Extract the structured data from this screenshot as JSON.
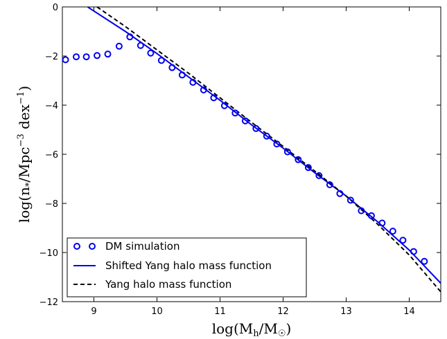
{
  "chart_data": {
    "type": "line",
    "title": "",
    "xlabel": "log(M_h/M_☉)",
    "ylabel": "log(n_*/Mpc^-3 dex^-1)",
    "xlim": [
      8.5,
      14.5
    ],
    "ylim": [
      -12,
      0
    ],
    "xticks": [
      9,
      10,
      11,
      12,
      13,
      14
    ],
    "yticks": [
      0,
      -2,
      -4,
      -6,
      -8,
      -10,
      -12
    ],
    "grid": false,
    "legend_position": "lower-left",
    "series": [
      {
        "name": "DM simulation",
        "kind": "scatter",
        "marker": "open-circle",
        "color": "#0000ee",
        "x": [
          8.55,
          8.72,
          8.88,
          9.05,
          9.22,
          9.4,
          9.57,
          9.74,
          9.9,
          10.07,
          10.24,
          10.4,
          10.57,
          10.74,
          10.9,
          11.07,
          11.24,
          11.4,
          11.57,
          11.74,
          11.9,
          12.07,
          12.24,
          12.4,
          12.57,
          12.74,
          12.9,
          13.07,
          13.24,
          13.4,
          13.57,
          13.74,
          13.9,
          14.07,
          14.24
        ],
        "y": [
          -2.15,
          -2.03,
          -2.03,
          -1.98,
          -1.92,
          -1.6,
          -1.22,
          -1.57,
          -1.88,
          -2.18,
          -2.47,
          -2.77,
          -3.07,
          -3.38,
          -3.7,
          -4.02,
          -4.32,
          -4.64,
          -4.95,
          -5.26,
          -5.58,
          -5.9,
          -6.22,
          -6.54,
          -6.87,
          -7.24,
          -7.6,
          -7.87,
          -8.3,
          -8.5,
          -8.8,
          -9.13,
          -9.5,
          -9.96,
          -10.36
        ]
      },
      {
        "name": "Shifted Yang halo mass function",
        "kind": "line",
        "style": "solid",
        "color": "#0000ee",
        "x": [
          8.9,
          9.5,
          10.0,
          10.5,
          11.0,
          11.5,
          12.0,
          12.5,
          13.0,
          13.5,
          14.0,
          14.5
        ],
        "y": [
          0,
          -1.0,
          -1.9,
          -2.85,
          -3.8,
          -4.8,
          -5.75,
          -6.75,
          -7.7,
          -8.75,
          -9.9,
          -11.25
        ]
      },
      {
        "name": "Yang halo mass function",
        "kind": "line",
        "style": "dashed",
        "color": "#000000",
        "x": [
          9.05,
          9.5,
          10.0,
          10.5,
          11.0,
          11.5,
          12.0,
          12.5,
          13.0,
          13.5,
          14.0,
          14.5
        ],
        "y": [
          0,
          -0.8,
          -1.75,
          -2.7,
          -3.7,
          -4.7,
          -5.68,
          -6.68,
          -7.7,
          -8.85,
          -10.1,
          -11.6
        ]
      }
    ]
  }
}
